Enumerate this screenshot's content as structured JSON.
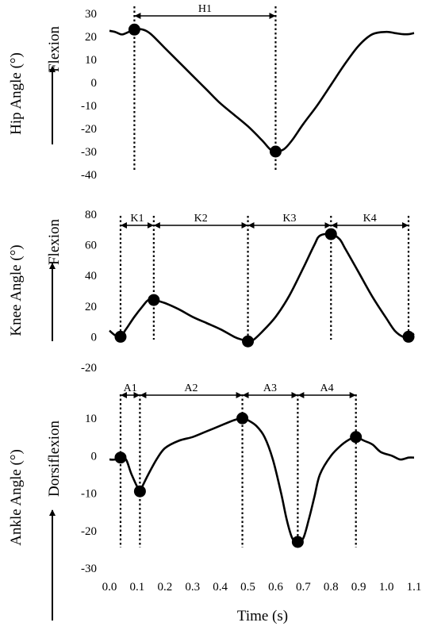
{
  "chart_data": {
    "type": "line",
    "xlabel": "Time (s)",
    "xticks": [
      "0.0",
      "0.1",
      "0.2",
      "0.3",
      "0.4",
      "0.5",
      "0.6",
      "0.7",
      "0.8",
      "0.9",
      "1.0",
      "1.1"
    ],
    "xlim": [
      0.0,
      1.1
    ],
    "panels": [
      {
        "id": "hip",
        "ylabel": "Hip Angle (°)",
        "direction_label": "Flexion",
        "ylim": [
          -40,
          30
        ],
        "yticks": [
          30,
          20,
          10,
          0,
          -10,
          -20,
          -30,
          -40
        ],
        "x": [
          0.0,
          0.02,
          0.04,
          0.05,
          0.07,
          0.09,
          0.12,
          0.15,
          0.2,
          0.25,
          0.3,
          0.35,
          0.4,
          0.45,
          0.5,
          0.55,
          0.58,
          0.6,
          0.63,
          0.66,
          0.7,
          0.75,
          0.8,
          0.85,
          0.9,
          0.95,
          1.0,
          1.03,
          1.06,
          1.08,
          1.1
        ],
        "values": [
          22.5,
          22,
          21,
          21,
          22,
          23,
          23,
          21,
          15,
          9,
          3,
          -3,
          -9,
          -14,
          -19,
          -25,
          -29,
          -30,
          -29,
          -25,
          -18,
          -10,
          -1,
          8,
          16,
          21,
          22,
          21.5,
          21,
          21,
          21.5
        ],
        "markers": [
          {
            "x": 0.09,
            "y": 23
          },
          {
            "x": 0.6,
            "y": -30
          }
        ],
        "guides": [
          0.09,
          0.6
        ],
        "phases": [
          {
            "label": "H1",
            "from": 0.09,
            "to": 0.6
          }
        ]
      },
      {
        "id": "knee",
        "ylabel": "Knee Angle (°)",
        "direction_label": "Flexion",
        "ylim": [
          -20,
          80
        ],
        "yticks": [
          80,
          60,
          40,
          20,
          0,
          -20
        ],
        "x": [
          0.0,
          0.02,
          0.04,
          0.06,
          0.09,
          0.12,
          0.14,
          0.16,
          0.2,
          0.25,
          0.3,
          0.35,
          0.4,
          0.45,
          0.48,
          0.5,
          0.52,
          0.55,
          0.6,
          0.65,
          0.7,
          0.74,
          0.76,
          0.8,
          0.83,
          0.85,
          0.9,
          0.95,
          1.0,
          1.03,
          1.06,
          1.08,
          1.1
        ],
        "values": [
          4,
          1,
          0,
          5,
          13,
          20,
          24,
          24,
          22,
          18,
          13,
          9,
          5,
          0,
          -2,
          -3,
          -2,
          3,
          13,
          27,
          45,
          60,
          66,
          67,
          64,
          58,
          42,
          26,
          12,
          4,
          0,
          0,
          2
        ],
        "markers": [
          {
            "x": 0.04,
            "y": 0
          },
          {
            "x": 0.16,
            "y": 24
          },
          {
            "x": 0.5,
            "y": -3
          },
          {
            "x": 0.8,
            "y": 67
          },
          {
            "x": 1.08,
            "y": 0
          }
        ],
        "guides": [
          0.04,
          0.16,
          0.5,
          0.8,
          1.08
        ],
        "phases": [
          {
            "label": "K1",
            "from": 0.04,
            "to": 0.16
          },
          {
            "label": "K2",
            "from": 0.16,
            "to": 0.5
          },
          {
            "label": "K3",
            "from": 0.5,
            "to": 0.8
          },
          {
            "label": "K4",
            "from": 0.8,
            "to": 1.08
          }
        ]
      },
      {
        "id": "ankle",
        "ylabel": "Ankle Angle (°)",
        "direction_label": "Dorsiflexion",
        "ylim": [
          -30,
          13
        ],
        "yticks": [
          10,
          0,
          -10,
          -20,
          -30
        ],
        "x": [
          0.0,
          0.02,
          0.04,
          0.06,
          0.08,
          0.11,
          0.12,
          0.14,
          0.17,
          0.2,
          0.25,
          0.3,
          0.35,
          0.4,
          0.45,
          0.48,
          0.5,
          0.53,
          0.56,
          0.59,
          0.62,
          0.64,
          0.66,
          0.68,
          0.7,
          0.72,
          0.74,
          0.76,
          0.8,
          0.84,
          0.87,
          0.89,
          0.92,
          0.95,
          0.98,
          1.02,
          1.05,
          1.08,
          1.1
        ],
        "values": [
          -1,
          -1,
          -0.5,
          -1,
          -5,
          -9.5,
          -8,
          -5,
          -1,
          2,
          4,
          5,
          6.5,
          8,
          9.5,
          10,
          9.5,
          8,
          5,
          -1,
          -10,
          -17,
          -22,
          -23,
          -22,
          -17,
          -11,
          -5,
          0,
          3,
          4.5,
          5,
          4,
          3,
          1,
          0,
          -1,
          -0.5,
          -0.5
        ],
        "markers": [
          {
            "x": 0.04,
            "y": -0.5
          },
          {
            "x": 0.11,
            "y": -9.5
          },
          {
            "x": 0.48,
            "y": 10
          },
          {
            "x": 0.68,
            "y": -23
          },
          {
            "x": 0.89,
            "y": 5
          }
        ],
        "guides": [
          0.04,
          0.11,
          0.48,
          0.68,
          0.89
        ],
        "phases": [
          {
            "label": "A1",
            "from": 0.04,
            "to": 0.11
          },
          {
            "label": "A2",
            "from": 0.11,
            "to": 0.48
          },
          {
            "label": "A3",
            "from": 0.48,
            "to": 0.68
          },
          {
            "label": "A4",
            "from": 0.68,
            "to": 0.89
          }
        ]
      }
    ]
  }
}
